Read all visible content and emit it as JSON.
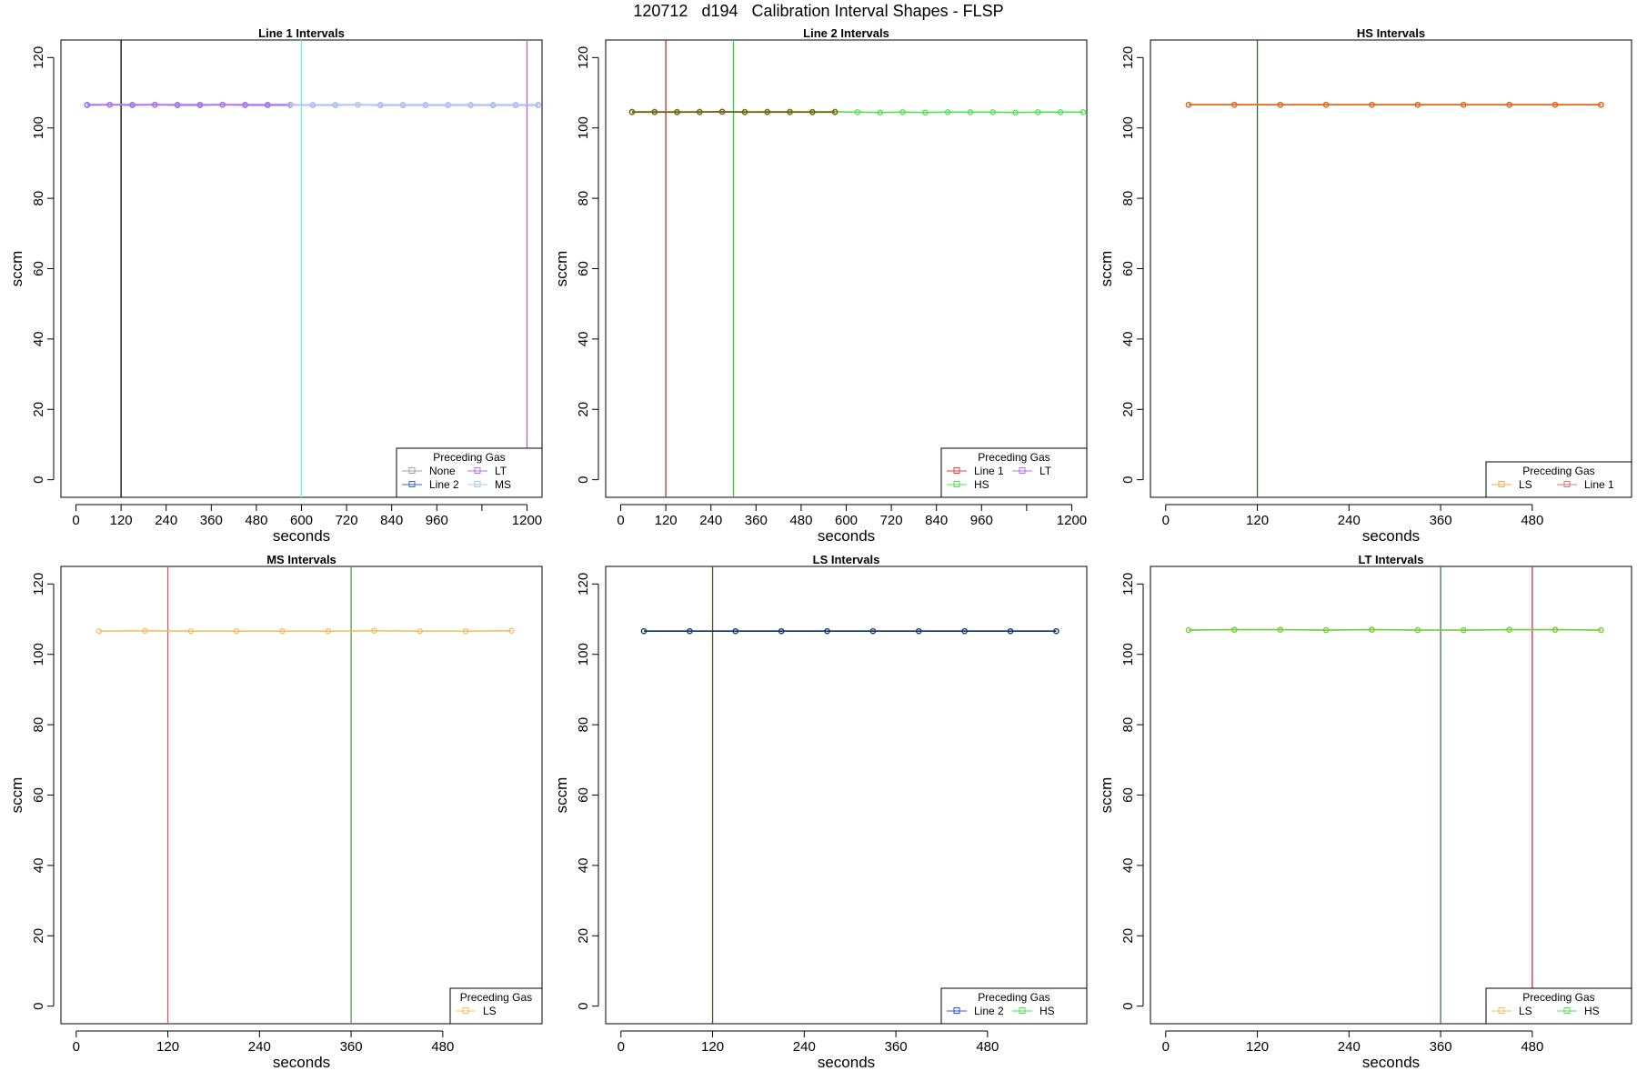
{
  "page_title": "120712   d194   Calibration Interval Shapes - FLSP",
  "chart_data": [
    {
      "type": "line",
      "title": "Line 1 Intervals",
      "xlabel": "seconds",
      "ylabel": "sccm",
      "xlim": [
        -40,
        1240
      ],
      "ylim": [
        -5,
        125
      ],
      "xticks": [
        0,
        120,
        240,
        360,
        480,
        600,
        720,
        840,
        960,
        1080,
        1200
      ],
      "xtick_labels": [
        "0",
        "120",
        "240",
        "360",
        "480",
        "600",
        "720",
        "840",
        "960",
        "",
        "1200"
      ],
      "yticks": [
        0,
        20,
        40,
        60,
        80,
        100,
        120
      ],
      "vlines": [
        {
          "x": 120,
          "color": "#000000"
        },
        {
          "x": 600,
          "color": "#5ff0f0"
        },
        {
          "x": 1200,
          "color": "#b060e0"
        }
      ],
      "series": [
        {
          "name": "None",
          "color": "#a0a0a0",
          "x": [
            30,
            90,
            150,
            210,
            270,
            330,
            390,
            450,
            510,
            570
          ],
          "y": [
            106.6,
            106.6,
            106.6,
            106.6,
            106.6,
            106.6,
            106.6,
            106.6,
            106.6,
            106.6
          ]
        },
        {
          "name": "Line 2",
          "color": "#3a5ee0",
          "x": [
            30,
            90,
            150,
            210,
            270,
            330,
            390,
            450,
            510,
            570
          ],
          "y": [
            106.5,
            106.6,
            106.5,
            106.6,
            106.5,
            106.5,
            106.6,
            106.5,
            106.5,
            106.5
          ]
        },
        {
          "name": "LT",
          "color": "#b070f0",
          "x": [
            30,
            90,
            150,
            210,
            270,
            330,
            390,
            450,
            510,
            570,
            630,
            690,
            750,
            810,
            870,
            930,
            990,
            1050,
            1110,
            1170,
            1230
          ],
          "y": [
            106.6,
            106.6,
            106.6,
            106.6,
            106.6,
            106.6,
            106.6,
            106.6,
            106.6,
            106.6,
            106.5,
            106.5,
            106.6,
            106.5,
            106.5,
            106.5,
            106.5,
            106.5,
            106.5,
            106.5,
            106.5
          ]
        },
        {
          "name": "MS",
          "color": "#a8c8ec",
          "x": [
            570,
            630,
            690,
            750,
            810,
            870,
            930,
            990,
            1050,
            1110,
            1170,
            1230
          ],
          "y": [
            106.5,
            106.6,
            106.6,
            106.6,
            106.6,
            106.6,
            106.6,
            106.6,
            106.6,
            106.6,
            106.6,
            106.6
          ]
        }
      ],
      "legend": {
        "title": "Preceding Gas",
        "position": "bottom-right",
        "columns": 2,
        "items": [
          "None",
          "Line 2",
          "LT",
          "MS"
        ]
      }
    },
    {
      "type": "line",
      "title": "Line 2 Intervals",
      "xlabel": "seconds",
      "ylabel": "sccm",
      "xlim": [
        -40,
        1240
      ],
      "ylim": [
        -5,
        125
      ],
      "xticks": [
        0,
        120,
        240,
        360,
        480,
        600,
        720,
        840,
        960,
        1080,
        1200
      ],
      "xtick_labels": [
        "0",
        "120",
        "240",
        "360",
        "480",
        "600",
        "720",
        "840",
        "960",
        "",
        "1200"
      ],
      "yticks": [
        0,
        20,
        40,
        60,
        80,
        100,
        120
      ],
      "vlines": [
        {
          "x": 120,
          "color": "#c03030"
        },
        {
          "x": 300,
          "color": "#30d030"
        }
      ],
      "series": [
        {
          "name": "Line 1",
          "color": "#e03c3c",
          "x": [
            30,
            90,
            150,
            210,
            270,
            330,
            390,
            450,
            510,
            570
          ],
          "y": [
            104.6,
            104.6,
            104.5,
            104.6,
            104.6,
            104.5,
            104.6,
            104.6,
            104.5,
            104.6
          ]
        },
        {
          "name": "HS",
          "color": "#50e050",
          "x": [
            30,
            90,
            150,
            210,
            270,
            330,
            390,
            450,
            510,
            570,
            630,
            690,
            750,
            810,
            870,
            930,
            990,
            1050,
            1110,
            1170,
            1230
          ],
          "y": [
            104.6,
            104.6,
            104.6,
            104.6,
            104.6,
            104.6,
            104.6,
            104.6,
            104.6,
            104.6,
            104.5,
            104.4,
            104.5,
            104.4,
            104.5,
            104.5,
            104.5,
            104.4,
            104.5,
            104.5,
            104.5
          ]
        },
        {
          "name": "LT",
          "color": "#7a5a10",
          "x": [
            30,
            90,
            150,
            210,
            270,
            330,
            390,
            450,
            510,
            570
          ],
          "y": [
            104.5,
            104.5,
            104.5,
            104.5,
            104.6,
            104.5,
            104.5,
            104.5,
            104.5,
            104.5
          ]
        }
      ],
      "legend": {
        "title": "Preceding Gas",
        "position": "bottom-right",
        "columns": 2,
        "items": [
          "Line 1",
          "HS",
          "LT"
        ],
        "item_colors": [
          "#e03c3c",
          "#50e050",
          "#b070f0"
        ]
      }
    },
    {
      "type": "line",
      "title": "HS Intervals",
      "xlabel": "seconds",
      "ylabel": "sccm",
      "xlim": [
        -20,
        610
      ],
      "ylim": [
        -5,
        125
      ],
      "xticks": [
        0,
        120,
        240,
        360,
        480
      ],
      "xtick_labels": [
        "0",
        "120",
        "240",
        "360",
        "480"
      ],
      "yticks": [
        0,
        20,
        40,
        60,
        80,
        100,
        120
      ],
      "vlines": [
        {
          "x": 120,
          "color": "#2e6a2e"
        }
      ],
      "series": [
        {
          "name": "LS",
          "color": "#f0a850",
          "x": [
            30,
            90,
            150,
            210,
            270,
            330,
            390,
            450,
            510,
            570
          ],
          "y": [
            106.6,
            106.6,
            106.6,
            106.6,
            106.6,
            106.6,
            106.6,
            106.6,
            106.6,
            106.6
          ]
        },
        {
          "name": "Line 1",
          "color": "#e07070",
          "x": [
            30,
            90,
            150,
            210,
            270,
            330,
            390,
            450,
            510,
            570
          ],
          "y": [
            106.6,
            106.6,
            106.6,
            106.6,
            106.6,
            106.6,
            106.6,
            106.6,
            106.6,
            106.6
          ]
        },
        {
          "name": "",
          "color": "#e0681e",
          "x": [
            30,
            90,
            150,
            210,
            270,
            330,
            390,
            450,
            510,
            570
          ],
          "y": [
            106.6,
            106.6,
            106.6,
            106.6,
            106.6,
            106.6,
            106.6,
            106.6,
            106.6,
            106.6
          ]
        }
      ],
      "legend": {
        "title": "Preceding Gas",
        "position": "bottom-right",
        "columns": 2,
        "items": [
          "LS",
          "Line 1"
        ],
        "item_colors": [
          "#f0a850",
          "#e07070"
        ]
      }
    },
    {
      "type": "line",
      "title": "MS Intervals",
      "xlabel": "seconds",
      "ylabel": "sccm",
      "xlim": [
        -20,
        610
      ],
      "ylim": [
        -5,
        125
      ],
      "xticks": [
        0,
        120,
        240,
        360,
        480
      ],
      "xtick_labels": [
        "0",
        "120",
        "240",
        "360",
        "480"
      ],
      "yticks": [
        0,
        20,
        40,
        60,
        80,
        100,
        120
      ],
      "vlines": [
        {
          "x": 120,
          "color": "#c06060"
        },
        {
          "x": 360,
          "color": "#50a050"
        }
      ],
      "series": [
        {
          "name": "LS",
          "color": "#f4c060",
          "x": [
            30,
            90,
            150,
            210,
            270,
            330,
            390,
            450,
            510,
            570
          ],
          "y": [
            106.6,
            106.7,
            106.6,
            106.6,
            106.6,
            106.6,
            106.7,
            106.6,
            106.6,
            106.7
          ]
        }
      ],
      "legend": {
        "title": "Preceding Gas",
        "position": "bottom-right",
        "columns": 1,
        "items": [
          "LS"
        ]
      }
    },
    {
      "type": "line",
      "title": "LS Intervals",
      "xlabel": "seconds",
      "ylabel": "sccm",
      "xlim": [
        -20,
        610
      ],
      "ylim": [
        -5,
        125
      ],
      "xticks": [
        0,
        120,
        240,
        360,
        480
      ],
      "xtick_labels": [
        "0",
        "120",
        "240",
        "360",
        "480"
      ],
      "yticks": [
        0,
        20,
        40,
        60,
        80,
        100,
        120
      ],
      "vlines": [
        {
          "x": 120,
          "color": "#3a5a1a"
        }
      ],
      "series": [
        {
          "name": "Line 2",
          "color": "#2a6ec8",
          "x": [
            30,
            90,
            150,
            210,
            270,
            330,
            390,
            450,
            510,
            570
          ],
          "y": [
            106.6,
            106.6,
            106.6,
            106.6,
            106.6,
            106.6,
            106.6,
            106.6,
            106.6,
            106.6
          ]
        },
        {
          "name": "HS",
          "color": "#1a3a6a",
          "x": [
            30,
            90,
            150,
            210,
            270,
            330,
            390,
            450,
            510,
            570
          ],
          "y": [
            106.6,
            106.6,
            106.6,
            106.6,
            106.6,
            106.6,
            106.6,
            106.6,
            106.6,
            106.6
          ]
        }
      ],
      "legend": {
        "title": "Preceding Gas",
        "position": "bottom-right",
        "columns": 2,
        "items": [
          "Line 2",
          "HS"
        ],
        "item_colors": [
          "#3050e0",
          "#50e050"
        ]
      }
    },
    {
      "type": "line",
      "title": "LT Intervals",
      "xlabel": "seconds",
      "ylabel": "sccm",
      "xlim": [
        -20,
        610
      ],
      "ylim": [
        -5,
        125
      ],
      "xticks": [
        0,
        120,
        240,
        360,
        480
      ],
      "xtick_labels": [
        "0",
        "120",
        "240",
        "360",
        "480"
      ],
      "yticks": [
        0,
        20,
        40,
        60,
        80,
        100,
        120
      ],
      "vlines": [
        {
          "x": 360,
          "color": "#3a7a3a"
        },
        {
          "x": 480,
          "color": "#c03050"
        }
      ],
      "series": [
        {
          "name": "LS",
          "color": "#f0c060",
          "x": [
            30,
            90,
            150,
            210,
            270,
            330,
            390,
            450,
            510,
            570
          ],
          "y": [
            106.9,
            107.0,
            107.0,
            106.9,
            107.0,
            106.9,
            106.9,
            107.0,
            107.0,
            106.9
          ]
        },
        {
          "name": "HS",
          "color": "#70d040",
          "x": [
            30,
            90,
            150,
            210,
            270,
            330,
            390,
            450,
            510,
            570
          ],
          "y": [
            106.9,
            107.0,
            107.0,
            106.9,
            107.0,
            106.9,
            106.9,
            107.0,
            107.0,
            106.9
          ]
        }
      ],
      "legend": {
        "title": "Preceding Gas",
        "position": "bottom-right",
        "columns": 2,
        "items": [
          "LS",
          "HS"
        ],
        "item_colors": [
          "#f0c060",
          "#50e050"
        ]
      }
    }
  ]
}
